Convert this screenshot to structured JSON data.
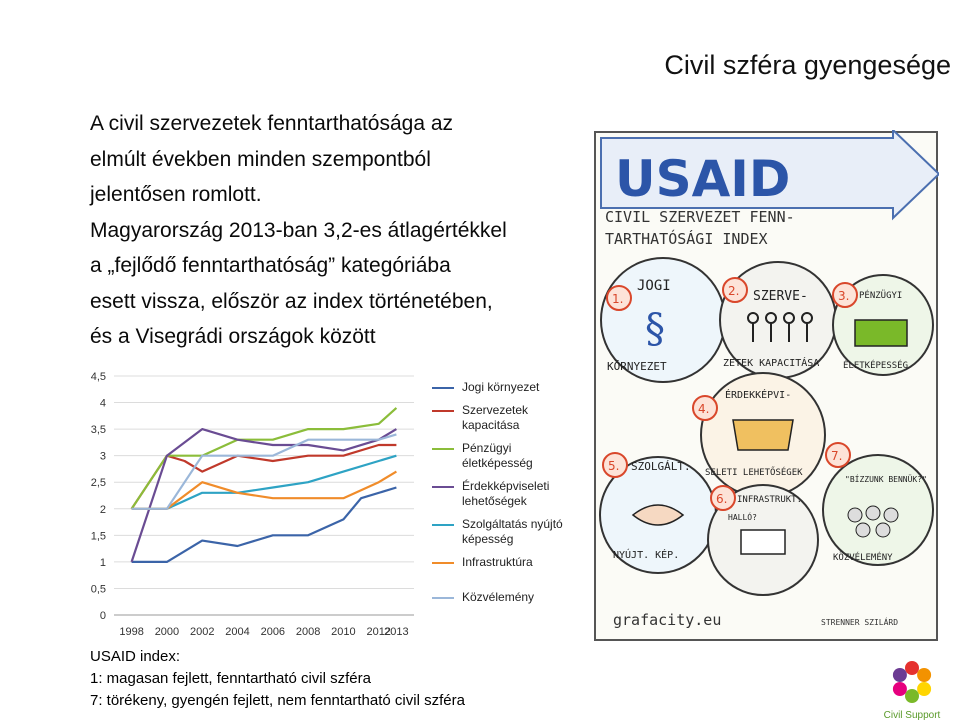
{
  "title": "Civil szféra gyengesége",
  "body_lines": [
    "A civil szervezetek fenntarthatósága az",
    "elmúlt években minden szempontból",
    "jelentősen romlott.",
    "Magyarország 2013-ban 3,2-es átlagértékkel",
    "a „fejlődő fenntarthatóság” kategóriába",
    "esett vissza, először az index történetében,",
    "és a Visegrádi országok között"
  ],
  "footnote": [
    "USAID index:",
    "1: magasan fejlett, fenntartható civil szféra",
    "7: törékeny, gyengén fejlett, nem fenntartható civil szféra"
  ],
  "illustration": {
    "title_line1": "USAID",
    "title_line2": "CIVIL SZERVEZET FENN-",
    "title_line3": "TARTHATÓSÁGI INDEX",
    "items": [
      {
        "num": "1.",
        "label": "JOGI"
      },
      {
        "num": "2.",
        "label": "SZERVE-"
      },
      {
        "num": "3.",
        "label": "PÉNZÜGYI"
      },
      {
        "num": "4.",
        "label": "ÉRDEKKÉPVI-"
      },
      {
        "num": "5.",
        "label": "SZOLGÁLT."
      },
      {
        "num": "6.",
        "label": "INFRASTRUKT."
      },
      {
        "num": "7.",
        "label": "\"BÍZZUNK BENNÜK?\""
      }
    ],
    "ring_texts": [
      "KÖRNYEZET",
      "ZETEK KAPACITÁSA",
      "ÉLETKÉPESSÉG",
      "SELETI LEHETŐSÉGEK",
      "NYÚJT. KÉP.",
      "KÖZVÉLEMÉNY"
    ],
    "speech": "HALLÓ?",
    "footer_left": "grafacity.eu",
    "footer_right": "STRENNER SZILÁRD"
  },
  "logo": {
    "text": "Civil Support",
    "colors": [
      "#e5312f",
      "#f39200",
      "#ffd500",
      "#7ab929",
      "#e6007e",
      "#6c3b93"
    ]
  },
  "chart_data": {
    "type": "line",
    "x": [
      "1998",
      "2000",
      "2002",
      "2004",
      "2006",
      "2008",
      "2010",
      "2012",
      "2013"
    ],
    "x_numeric": [
      1998,
      2000,
      2002,
      2004,
      2006,
      2008,
      2010,
      2012,
      2013
    ],
    "ylim": [
      0,
      4.5
    ],
    "yticks": [
      "0",
      "0,5",
      "1",
      "1,5",
      "2",
      "2,5",
      "3",
      "3,5",
      "4",
      "4,5"
    ],
    "ytick_values": [
      0,
      0.5,
      1,
      1.5,
      2,
      2.5,
      3,
      3.5,
      4,
      4.5
    ],
    "grid": true,
    "legend_position": "right",
    "series": [
      {
        "name": "Jogi környezet",
        "color": "#3b64a8",
        "points": [
          [
            1998,
            1
          ],
          [
            1999,
            1
          ],
          [
            2000,
            1
          ],
          [
            2002,
            1.4
          ],
          [
            2004,
            1.3
          ],
          [
            2006,
            1.5
          ],
          [
            2008,
            1.5
          ],
          [
            2010,
            1.8
          ],
          [
            2011,
            2.2
          ],
          [
            2013,
            2.4
          ]
        ]
      },
      {
        "name": "Szervezetek kapacitása",
        "color": "#c0392b",
        "points": [
          [
            1998,
            2
          ],
          [
            2000,
            3
          ],
          [
            2001,
            2.9
          ],
          [
            2002,
            2.7
          ],
          [
            2004,
            3
          ],
          [
            2006,
            2.9
          ],
          [
            2008,
            3
          ],
          [
            2010,
            3
          ],
          [
            2012,
            3.2
          ],
          [
            2013,
            3.2
          ]
        ]
      },
      {
        "name": "Pénzügyi életképesség",
        "color": "#8bbd3a",
        "points": [
          [
            1998,
            2
          ],
          [
            2000,
            3
          ],
          [
            2002,
            3
          ],
          [
            2004,
            3.3
          ],
          [
            2006,
            3.3
          ],
          [
            2008,
            3.5
          ],
          [
            2010,
            3.5
          ],
          [
            2012,
            3.6
          ],
          [
            2013,
            3.9
          ]
        ]
      },
      {
        "name": "Érdekképviseleti lehetőségek",
        "color": "#6a4c93",
        "points": [
          [
            1998,
            1
          ],
          [
            2000,
            3
          ],
          [
            2002,
            3.5
          ],
          [
            2004,
            3.3
          ],
          [
            2006,
            3.2
          ],
          [
            2008,
            3.2
          ],
          [
            2010,
            3.1
          ],
          [
            2012,
            3.3
          ],
          [
            2013,
            3.5
          ]
        ]
      },
      {
        "name": "Szolgáltatás nyújtó képesség",
        "color": "#2ea3c4",
        "points": [
          [
            1998,
            2
          ],
          [
            2000,
            2
          ],
          [
            2002,
            2.3
          ],
          [
            2004,
            2.3
          ],
          [
            2006,
            2.4
          ],
          [
            2008,
            2.5
          ],
          [
            2010,
            2.7
          ],
          [
            2012,
            2.9
          ],
          [
            2013,
            3
          ]
        ]
      },
      {
        "name": "Infrastruktúra",
        "color": "#f08c2a",
        "points": [
          [
            1998,
            2
          ],
          [
            2000,
            2
          ],
          [
            2002,
            2.5
          ],
          [
            2004,
            2.3
          ],
          [
            2006,
            2.2
          ],
          [
            2008,
            2.2
          ],
          [
            2010,
            2.2
          ],
          [
            2012,
            2.5
          ],
          [
            2013,
            2.7
          ]
        ]
      },
      {
        "name": "Közvélemény",
        "color": "#9bb7d9",
        "points": [
          [
            1998,
            2
          ],
          [
            2000,
            2
          ],
          [
            2002,
            3
          ],
          [
            2004,
            3
          ],
          [
            2006,
            3
          ],
          [
            2008,
            3.3
          ],
          [
            2010,
            3.3
          ],
          [
            2012,
            3.3
          ],
          [
            2013,
            3.4
          ]
        ]
      }
    ]
  }
}
